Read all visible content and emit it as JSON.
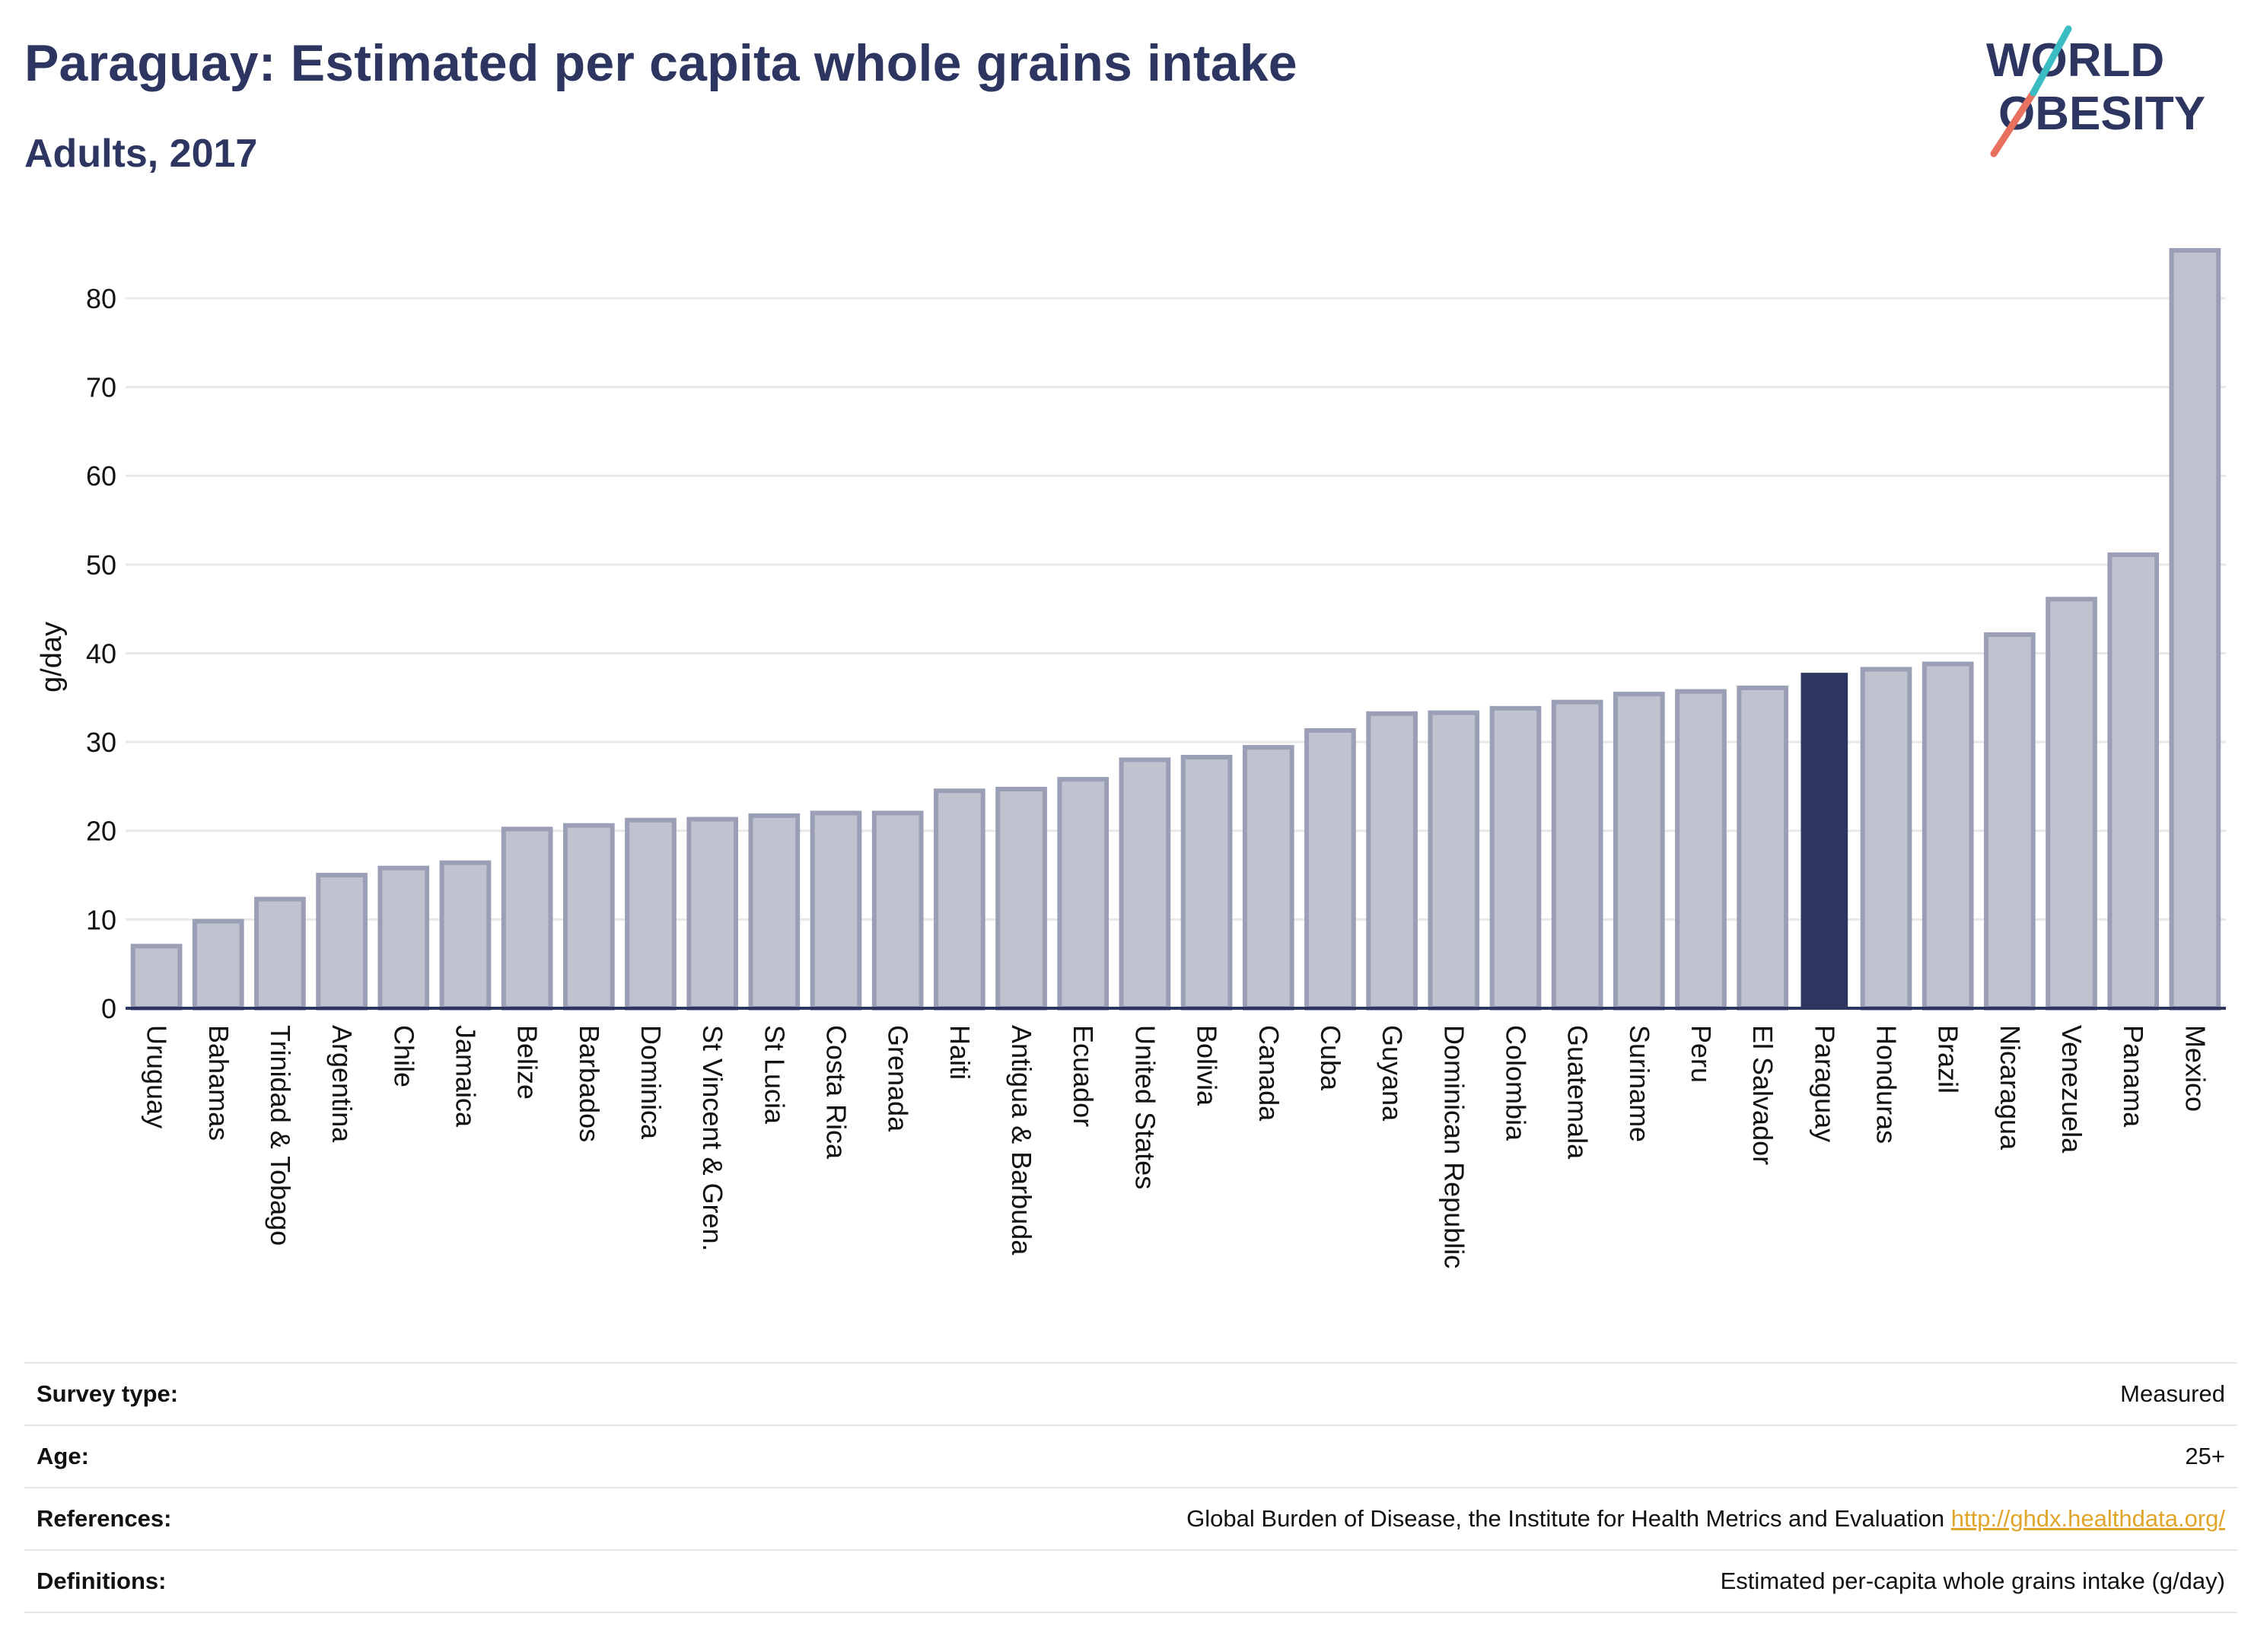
{
  "header": {
    "title": "Paraguay: Estimated per capita whole grains intake",
    "subtitle": "Adults, 2017"
  },
  "logo": {
    "line1": "WORLD",
    "line2": "OBESITY"
  },
  "chart_data": {
    "type": "bar",
    "ylabel": "g/day",
    "ylim": [
      0,
      86
    ],
    "yticks": [
      0,
      10,
      20,
      30,
      40,
      50,
      60,
      70,
      80
    ],
    "grid": true,
    "highlight": "Paraguay",
    "colors": {
      "bar": "#bfc2cf",
      "bar_border": "#9a9fb5",
      "highlight": "#2d3561",
      "grid": "#e8e8e8",
      "axis": "#2d3561"
    },
    "categories": [
      "Uruguay",
      "Bahamas",
      "Trinidad & Tobago",
      "Argentina",
      "Chile",
      "Jamaica",
      "Belize",
      "Barbados",
      "Dominica",
      "St Vincent & Gren.",
      "St Lucia",
      "Costa Rica",
      "Grenada",
      "Haiti",
      "Antigua & Barbuda",
      "Ecuador",
      "United States",
      "Bolivia",
      "Canada",
      "Cuba",
      "Guyana",
      "Dominican Republic",
      "Colombia",
      "Guatemala",
      "Suriname",
      "Peru",
      "El Salvador",
      "Paraguay",
      "Honduras",
      "Brazil",
      "Nicaragua",
      "Venezuela",
      "Panama",
      "Mexico"
    ],
    "values": [
      7,
      9.8,
      12.3,
      15,
      15.8,
      16.4,
      20.2,
      20.6,
      21.2,
      21.3,
      21.7,
      22,
      22,
      24.5,
      24.7,
      25.8,
      28,
      28.3,
      29.4,
      31.3,
      33.2,
      33.3,
      33.8,
      34.5,
      35.4,
      35.7,
      36.1,
      37.8,
      38.2,
      38.8,
      42.1,
      46.1,
      51.1,
      85.4
    ]
  },
  "info": {
    "survey_type_label": "Survey type:",
    "survey_type_value": "Measured",
    "age_label": "Age:",
    "age_value": "25+",
    "references_label": "References:",
    "references_value": "Global Burden of Disease, the Institute for Health Metrics and Evaluation",
    "references_link": "http://ghdx.healthdata.org/",
    "definitions_label": "Definitions:",
    "definitions_value": "Estimated per-capita whole grains intake (g/day)"
  }
}
